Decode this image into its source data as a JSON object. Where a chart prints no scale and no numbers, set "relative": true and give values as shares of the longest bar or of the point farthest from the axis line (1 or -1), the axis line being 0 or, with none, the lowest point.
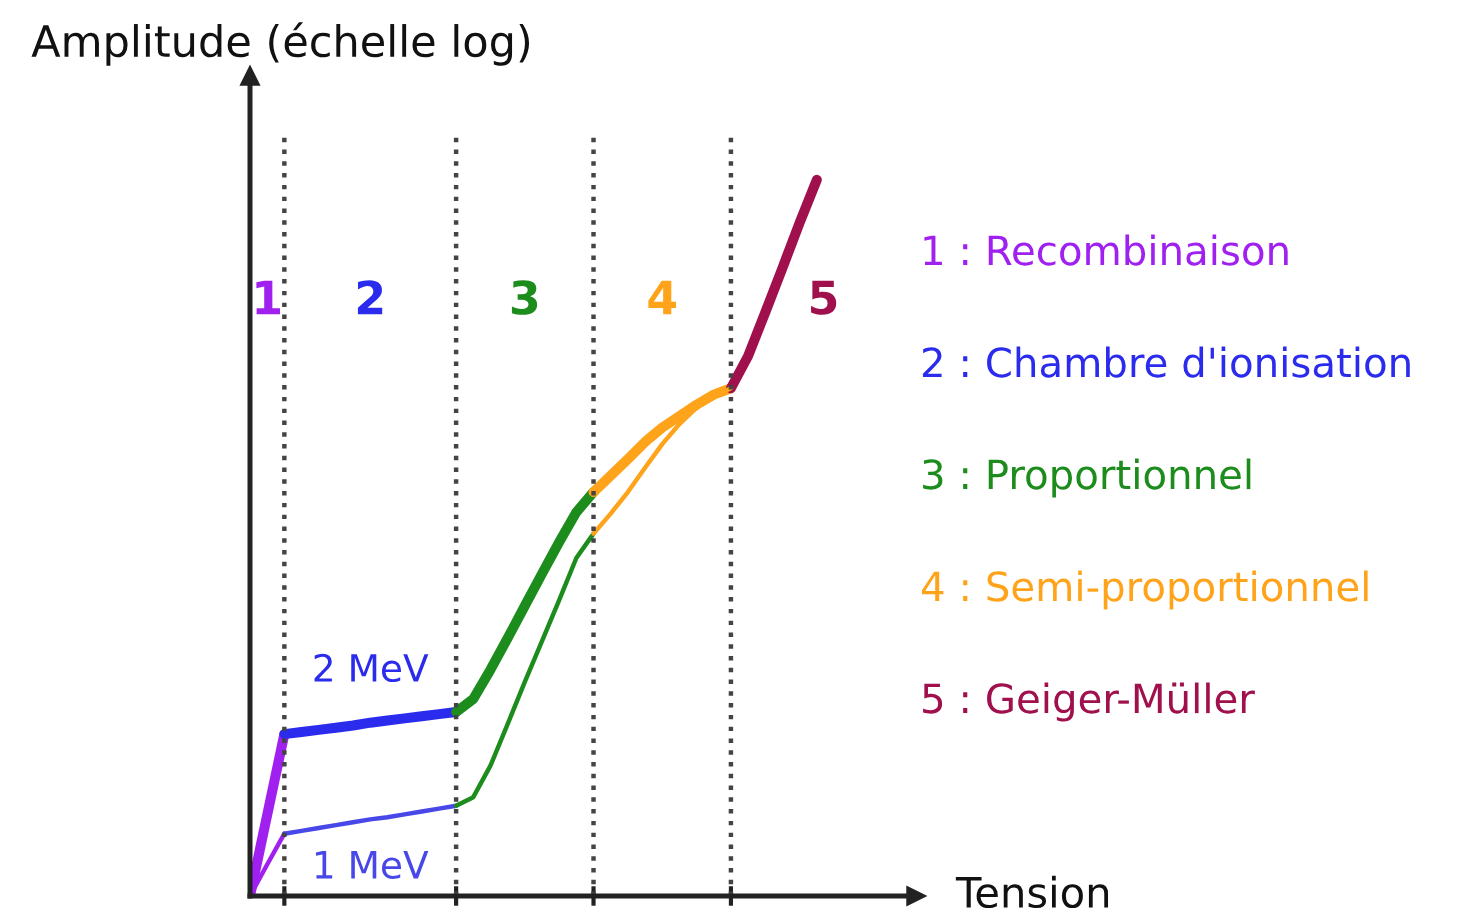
{
  "chart_data": {
    "type": "line",
    "xlabel": "Tension",
    "ylabel": "Amplitude (échelle log)",
    "relative": true,
    "tick_labels": false,
    "grid": "x",
    "categories": [
      null,
      null,
      null,
      null,
      null,
      null,
      null,
      null,
      null,
      null,
      null,
      null,
      null,
      null,
      null,
      null,
      null,
      null,
      null,
      null,
      null,
      null,
      null,
      null,
      null,
      null,
      null,
      null,
      null,
      null,
      null,
      null,
      null,
      null
    ],
    "annotations": [
      "1",
      "2",
      "3",
      "4",
      "5",
      "2 MeV",
      "1 MeV"
    ],
    "series": [
      {
        "name": "1 : Recombinaison",
        "color": "#a020f0",
        "values": [
          0,
          0.113,
          0.226,
          null,
          null,
          null,
          null,
          null,
          null,
          null,
          null,
          null,
          null,
          null,
          null,
          null,
          null,
          null,
          null,
          null,
          null,
          null,
          null,
          null,
          null,
          null,
          null,
          null,
          null,
          null,
          null,
          null,
          null,
          null
        ]
      },
      {
        "name": "2 : Chambre d'ionisation",
        "color": "#2b2bee",
        "values": [
          null,
          null,
          0.226,
          0.229,
          0.232,
          0.235,
          0.238,
          0.242,
          0.245,
          0.248,
          0.251,
          0.254,
          0.257,
          null,
          null,
          null,
          null,
          null,
          null,
          null,
          null,
          null,
          null,
          null,
          null,
          null,
          null,
          null,
          null,
          null,
          null,
          null,
          null,
          null
        ]
      },
      {
        "name": "3 : Proportionnel",
        "color": "#1c8c1c",
        "values": [
          null,
          null,
          null,
          null,
          null,
          null,
          null,
          null,
          null,
          null,
          null,
          null,
          0.257,
          0.275,
          0.316,
          0.36,
          0.405,
          0.45,
          0.494,
          0.536,
          0.564,
          null,
          null,
          null,
          null,
          null,
          null,
          null,
          null,
          null,
          null,
          null,
          null,
          null
        ]
      },
      {
        "name": "4 : Semi-proportionnel",
        "color": "#ffa31a",
        "values": [
          null,
          null,
          null,
          null,
          null,
          null,
          null,
          null,
          null,
          null,
          null,
          null,
          null,
          null,
          null,
          null,
          null,
          null,
          null,
          null,
          0.564,
          0.587,
          0.61,
          0.634,
          0.654,
          0.67,
          0.686,
          0.7,
          0.709,
          null,
          null,
          null,
          null,
          null
        ]
      },
      {
        "name": "5 : Geiger-Müller",
        "color": "#a0104c",
        "values": [
          null,
          null,
          null,
          null,
          null,
          null,
          null,
          null,
          null,
          null,
          null,
          null,
          null,
          null,
          null,
          null,
          null,
          null,
          null,
          null,
          null,
          null,
          null,
          null,
          null,
          null,
          null,
          null,
          0.709,
          0.754,
          0.815,
          0.877,
          0.94,
          1.0
        ]
      },
      {
        "color": "#a020f0",
        "values": [
          0,
          0.044,
          0.087,
          null,
          null,
          null,
          null,
          null,
          null,
          null,
          null,
          null,
          null,
          null,
          null,
          null,
          null,
          null,
          null,
          null,
          null,
          null,
          null,
          null,
          null,
          null,
          null,
          null,
          null,
          null,
          null,
          null,
          null,
          null
        ]
      },
      {
        "color": "#4848e8",
        "values": [
          null,
          null,
          0.087,
          0.091,
          0.095,
          0.099,
          0.103,
          0.107,
          0.11,
          0.114,
          0.118,
          0.122,
          0.126,
          null,
          null,
          null,
          null,
          null,
          null,
          null,
          null,
          null,
          null,
          null,
          null,
          null,
          null,
          null,
          null,
          null,
          null,
          null,
          null,
          null
        ]
      },
      {
        "color": "#1c8c1c",
        "values": [
          null,
          null,
          null,
          null,
          null,
          null,
          null,
          null,
          null,
          null,
          null,
          null,
          0.126,
          0.138,
          0.182,
          0.24,
          0.299,
          0.356,
          0.413,
          0.472,
          0.506,
          null,
          null,
          null,
          null,
          null,
          null,
          null,
          null,
          null,
          null,
          null,
          null,
          null
        ]
      },
      {
        "color": "#ffa31a",
        "values": [
          null,
          null,
          null,
          null,
          null,
          null,
          null,
          null,
          null,
          null,
          null,
          null,
          null,
          null,
          null,
          null,
          null,
          null,
          null,
          null,
          0.506,
          0.534,
          0.564,
          0.598,
          0.631,
          0.659,
          0.682,
          0.698,
          0.709,
          null,
          null,
          null,
          null,
          null
        ]
      }
    ]
  }
}
